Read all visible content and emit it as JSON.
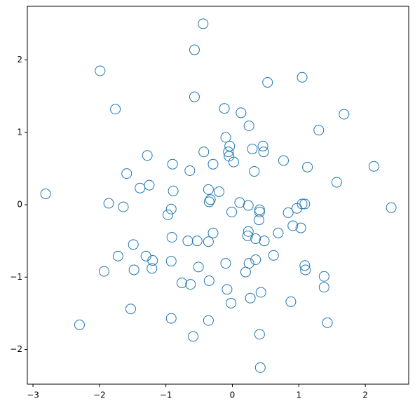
{
  "chart_data": {
    "type": "scatter",
    "x": [
      -0.44,
      -0.57,
      -1.99,
      1.05,
      0.53,
      -0.57,
      -1.76,
      -0.12,
      0.13,
      1.68,
      0.25,
      1.3,
      -0.1,
      -0.04,
      0.46,
      0.3,
      -0.43,
      -0.06,
      0.47,
      -1.28,
      -0.05,
      0.02,
      0.77,
      -0.9,
      -0.29,
      1.13,
      2.13,
      -0.64,
      0.33,
      -1.59,
      1.57,
      -1.25,
      -1.39,
      -0.36,
      -0.2,
      -0.89,
      -2.81,
      -0.33,
      -0.35,
      0.11,
      1.05,
      1.09,
      -1.86,
      -1.64,
      0.24,
      2.39,
      0.97,
      -0.92,
      0.41,
      0.41,
      -0.01,
      0.84,
      -0.97,
      0.4,
      0.91,
      1.03,
      0.24,
      -0.29,
      0.69,
      0.23,
      -0.91,
      0.35,
      0.48,
      -0.53,
      -0.67,
      -0.36,
      -1.49,
      -1.72,
      -1.3,
      0.62,
      -1.2,
      0.35,
      -0.92,
      0.25,
      -0.1,
      -0.51,
      1.09,
      -1.21,
      -1.48,
      1.1,
      -1.93,
      0.2,
      1.38,
      -0.35,
      -0.76,
      -0.63,
      1.38,
      -0.08,
      0.43,
      0.27,
      0.88,
      -0.02,
      -1.53,
      -0.92,
      -0.36,
      1.43,
      -2.3,
      0.41,
      -0.59,
      0.42
    ],
    "values": [
      2.5,
      2.14,
      1.85,
      1.76,
      1.69,
      1.49,
      1.32,
      1.33,
      1.27,
      1.25,
      1.09,
      1.03,
      0.93,
      0.81,
      0.81,
      0.77,
      0.73,
      0.73,
      0.73,
      0.68,
      0.67,
      0.59,
      0.61,
      0.56,
      0.56,
      0.52,
      0.53,
      0.47,
      0.46,
      0.43,
      0.31,
      0.27,
      0.23,
      0.21,
      0.18,
      0.19,
      0.15,
      0.07,
      0.04,
      0.03,
      0.01,
      0.01,
      0.02,
      -0.03,
      -0.01,
      -0.04,
      -0.05,
      -0.06,
      -0.07,
      -0.1,
      -0.1,
      -0.11,
      -0.14,
      -0.21,
      -0.29,
      -0.32,
      -0.37,
      -0.39,
      -0.39,
      -0.43,
      -0.45,
      -0.47,
      -0.5,
      -0.5,
      -0.5,
      -0.51,
      -0.55,
      -0.71,
      -0.71,
      -0.7,
      -0.77,
      -0.76,
      -0.78,
      -0.81,
      -0.81,
      -0.86,
      -0.84,
      -0.88,
      -0.9,
      -0.9,
      -0.92,
      -0.93,
      -0.99,
      -1.05,
      -1.08,
      -1.1,
      -1.14,
      -1.17,
      -1.21,
      -1.29,
      -1.34,
      -1.36,
      -1.44,
      -1.57,
      -1.6,
      -1.63,
      -1.66,
      -1.79,
      -1.82,
      -2.25
    ],
    "color": "#1f77b4",
    "xlim": [
      -3.085,
      2.653
    ],
    "ylim": [
      -2.479,
      2.741
    ],
    "xticks": [
      {
        "value": -3,
        "label": "−3"
      },
      {
        "value": -2,
        "label": "−2"
      },
      {
        "value": -1,
        "label": "−1"
      },
      0,
      1,
      2
    ],
    "yticks": [
      {
        "value": -2,
        "label": "−2"
      },
      {
        "value": -1,
        "label": "−1"
      },
      0,
      1,
      2
    ]
  }
}
